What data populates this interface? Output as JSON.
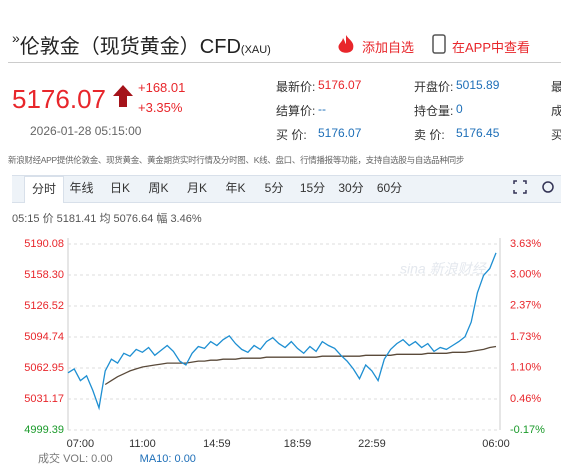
{
  "header": {
    "prefix": "»",
    "title": "伦敦金（现货黄金）CFD",
    "code": "(XAU)",
    "add_watch": "添加自选",
    "open_app": "在APP中查看"
  },
  "quote": {
    "price": "5176.07",
    "change": "+168.01",
    "change_pct": "+3.35%",
    "time": "2026-01-28 05:15:00",
    "rows": [
      [
        [
          "最新价:",
          "5176.07"
        ],
        [
          "开盘价:",
          "5015.89"
        ],
        [
          "最"
        ]
      ],
      [
        [
          "结算价:",
          "--"
        ],
        [
          "持仓量:",
          "0"
        ],
        [
          "成"
        ]
      ],
      [
        [
          "买 价:",
          "5176.07"
        ],
        [
          "卖 价:",
          "5176.45"
        ],
        [
          "买"
        ]
      ]
    ]
  },
  "notice": "新浪财经APP提供伦敦金、现货黄金、黄金期货实时行情及分时图、K线、盘口、行情播报等功能，支持自选股与自选品种同步",
  "tabs": [
    "分时",
    "年线",
    "日K",
    "周K",
    "月K",
    "年K",
    "5分",
    "15分",
    "30分",
    "60分"
  ],
  "info": {
    "time": "05:15",
    "price_label": "价",
    "price": "5181.41",
    "avg_label": "均",
    "avg": "5076.64",
    "amp_label": "幅",
    "amp": "3.46%"
  },
  "watermark": "sina 新浪财经",
  "volume": {
    "label": "成交",
    "vol": "VOL: 0.00",
    "ma": "MA10: 0.00"
  },
  "chart_data": {
    "type": "line",
    "categories": [
      null,
      null,
      "07:00",
      null,
      null,
      null,
      null,
      null,
      null,
      null,
      null,
      null,
      "11:00",
      null,
      null,
      null,
      null,
      null,
      null,
      null,
      null,
      null,
      null,
      null,
      "14:59",
      null,
      null,
      null,
      null,
      null,
      null,
      null,
      null,
      null,
      null,
      null,
      null,
      "18:59",
      null,
      null,
      null,
      null,
      null,
      null,
      null,
      null,
      null,
      null,
      null,
      "22:59",
      null,
      null,
      null,
      null,
      null,
      null,
      null,
      null,
      null,
      null,
      null,
      null,
      null,
      null,
      null,
      null,
      null,
      null,
      null,
      "06:00"
    ],
    "series": [
      {
        "name": "价",
        "color": "#1e8fd2",
        "values": [
          5058,
          5062,
          5050,
          5055,
          5040,
          5022,
          5060,
          5072,
          5068,
          5078,
          5075,
          5082,
          5079,
          5084,
          5076,
          5081,
          5086,
          5080,
          5070,
          5066,
          5078,
          5085,
          5083,
          5090,
          5086,
          5092,
          5096,
          5088,
          5082,
          5079,
          5086,
          5082,
          5090,
          5094,
          5088,
          5084,
          5090,
          5083,
          5078,
          5085,
          5080,
          5090,
          5086,
          5083,
          5076,
          5070,
          5062,
          5052,
          5066,
          5060,
          5050,
          5072,
          5082,
          5088,
          5092,
          5086,
          5090,
          5084,
          5088,
          5080,
          5084,
          5082,
          5086,
          5090,
          5095,
          5110,
          5140,
          5158,
          5165,
          5181
        ]
      },
      {
        "name": "均",
        "color": "#5a4a3a",
        "values": [
          null,
          null,
          null,
          null,
          null,
          null,
          5046,
          5050,
          5054,
          5057,
          5060,
          5062,
          5064,
          5065,
          5066,
          5067,
          5068,
          5068,
          5068,
          5068,
          5069,
          5070,
          5070,
          5071,
          5071,
          5072,
          5072,
          5072,
          5073,
          5073,
          5073,
          5073,
          5074,
          5074,
          5074,
          5074,
          5074,
          5074,
          5074,
          5074,
          5074,
          5075,
          5075,
          5075,
          5075,
          5075,
          5075,
          5075,
          5076,
          5076,
          5076,
          5076,
          5076,
          5077,
          5077,
          5077,
          5077,
          5077,
          5078,
          5078,
          5078,
          5078,
          5079,
          5079,
          5079,
          5080,
          5081,
          5082,
          5084,
          5085
        ]
      }
    ],
    "ylim": [
      4999.39,
      5190.08
    ],
    "yticks": [
      4999.39,
      5031.17,
      5062.95,
      5094.74,
      5126.52,
      {
        "value": 5158.3,
        "label": "5158.30"
      },
      5190.08
    ],
    "y2lim": [
      -0.17,
      3.63
    ],
    "y2ticks": [
      {
        "value": -0.17,
        "label": "-0.17%"
      },
      {
        "value": 0.46,
        "label": "0.46%"
      },
      {
        "value": 1.1,
        "label": "1.10%"
      },
      {
        "value": 1.73,
        "label": "1.73%"
      },
      {
        "value": 2.37,
        "label": "2.37%"
      },
      {
        "value": 3.0,
        "label": "3.00%"
      },
      {
        "value": 3.63,
        "label": "3.63%"
      }
    ],
    "grid": true
  }
}
